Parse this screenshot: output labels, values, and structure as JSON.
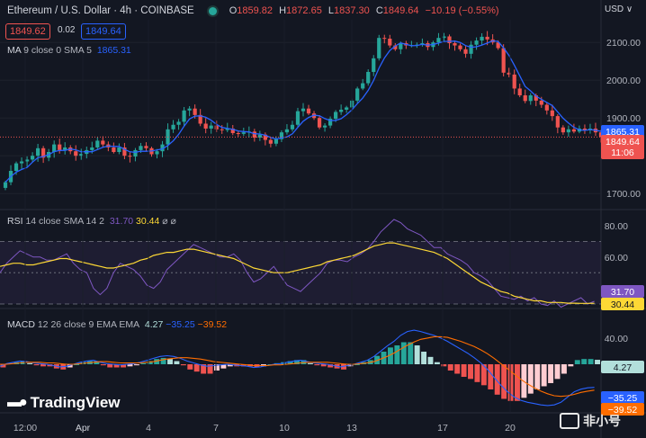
{
  "header": {
    "symbol": "Ethereum / U.S. Dollar · 4h · COINBASE",
    "o_label": "O",
    "o": "1859.82",
    "h_label": "H",
    "h": "1872.65",
    "l_label": "L",
    "l": "1837.30",
    "c_label": "C",
    "c": "1849.64",
    "change": "−10.19 (−0.55%)",
    "currency": "USD"
  },
  "quote": {
    "bid": "1849.62",
    "spread": "0.02",
    "ask": "1849.64"
  },
  "ma_legend": {
    "name": "MA",
    "params": "9 close 0 SMA 5",
    "value": "1865.31"
  },
  "rsi_legend": {
    "name": "RSI",
    "params": "14 close SMA 14 2",
    "v1": "31.70",
    "v2": "30.44",
    "icons": "⌀ ⌀"
  },
  "macd_legend": {
    "name": "MACD",
    "params": "12 26 close 9 EMA EMA",
    "v1": "4.27",
    "v2": "−35.25",
    "v3": "−39.52"
  },
  "branding": {
    "name": "TradingView",
    "watermark": "非小号"
  },
  "colors": {
    "up": "#26a69a",
    "down": "#ef5350",
    "ma": "#2962ff",
    "rsi": "#7e57c2",
    "rsi_sma": "#fdd835",
    "macd": "#2962ff",
    "signal": "#ff6d00",
    "hist_up": "#26a69a",
    "hist_up_weak": "#b2dfdb",
    "hist_down": "#ef5350",
    "hist_down_weak": "#ffcdd2"
  },
  "chart_data": [
    {
      "type": "candlestick",
      "title": "Ethereum / U.S. Dollar 4h COINBASE",
      "ylim": [
        1660,
        2160
      ],
      "yticks": [
        1700,
        1800,
        1900,
        2000,
        2100
      ],
      "xticks": [
        "12:00",
        "Apr",
        "4",
        "7",
        "10",
        "13",
        "17",
        "20"
      ],
      "closes": [
        1730,
        1760,
        1780,
        1785,
        1790,
        1800,
        1820,
        1795,
        1810,
        1830,
        1815,
        1822,
        1812,
        1800,
        1805,
        1815,
        1822,
        1840,
        1830,
        1822,
        1810,
        1822,
        1800,
        1798,
        1815,
        1826,
        1820,
        1804,
        1812,
        1830,
        1870,
        1882,
        1890,
        1920,
        1925,
        1908,
        1885,
        1872,
        1880,
        1870,
        1868,
        1872,
        1860,
        1858,
        1862,
        1864,
        1848,
        1856,
        1842,
        1832,
        1844,
        1862,
        1870,
        1882,
        1918,
        1925,
        1912,
        1900,
        1875,
        1880,
        1898,
        1916,
        1922,
        1928,
        1946,
        1978,
        1992,
        2022,
        2058,
        2112,
        2110,
        2092,
        2082,
        2098,
        2092,
        2093,
        2094,
        2098,
        2088,
        2100,
        2112,
        2116,
        2098,
        2092,
        2082,
        2070,
        2094,
        2105,
        2115,
        2108,
        2100,
        2085,
        2020,
        2015,
        1978,
        1960,
        1945,
        1960,
        1946,
        1935,
        1920,
        1905,
        1875,
        1862,
        1870,
        1864,
        1872,
        1868,
        1872,
        1862,
        1850
      ],
      "ma": {
        "label": "MA 9 close 0 SMA 5",
        "last": 1865.31
      },
      "last_price": 1849.64,
      "last_ma_label": "1865.31",
      "last_price_label": "1849.64",
      "countdown": "11:06"
    },
    {
      "type": "line",
      "title": "RSI 14 close SMA 14 2",
      "ylim": [
        30,
        84
      ],
      "yticks": [
        40,
        60,
        80
      ],
      "bands": [
        30,
        50,
        70
      ],
      "rsi": [
        50,
        56,
        60,
        64,
        62,
        60,
        60,
        58,
        58,
        60,
        62,
        56,
        52,
        50,
        40,
        36,
        40,
        50,
        56,
        54,
        52,
        48,
        42,
        40,
        44,
        52,
        56,
        60,
        64,
        68,
        66,
        64,
        62,
        60,
        60,
        62,
        58,
        50,
        44,
        46,
        50,
        54,
        48,
        42,
        40,
        38,
        42,
        46,
        50,
        56,
        58,
        58,
        57,
        60,
        62,
        65,
        70,
        76,
        80,
        84,
        82,
        78,
        76,
        74,
        70,
        66,
        66,
        62,
        60,
        58,
        55,
        50,
        48,
        45,
        40,
        35,
        34,
        33,
        35,
        32,
        34,
        30,
        29,
        32,
        28,
        30,
        32,
        34,
        30,
        31.7
      ],
      "sma": [
        54,
        55,
        56,
        56,
        55,
        55,
        56,
        57,
        58,
        59,
        59,
        58,
        57,
        56,
        55,
        54,
        53,
        53,
        54,
        55,
        56,
        58,
        59,
        61,
        62,
        63,
        63,
        64,
        65,
        65,
        64,
        63,
        62,
        61,
        60,
        59,
        57,
        55,
        53,
        52,
        51,
        50,
        50,
        50,
        51,
        52,
        53,
        54,
        55,
        57,
        58,
        59,
        60,
        61,
        63,
        65,
        67,
        68,
        69,
        69,
        68,
        67,
        66,
        65,
        64,
        63,
        61,
        59,
        56,
        53,
        50,
        47,
        44,
        42,
        40,
        38,
        37,
        35,
        34,
        33,
        32,
        32,
        31,
        31,
        31,
        30.5,
        30.5,
        30.4,
        30.4,
        30.44
      ],
      "last_rsi_label": "31.70",
      "last_sma_label": "30.44"
    },
    {
      "type": "line",
      "title": "MACD 12 26 close 9 EMA EMA",
      "ylim": [
        -70,
        70
      ],
      "yticks": [
        40
      ],
      "macd": [
        -3,
        1,
        3,
        5,
        4,
        2,
        1,
        0,
        -2,
        -4,
        -3,
        0,
        3,
        5,
        6,
        3,
        1,
        0,
        -1,
        0,
        1,
        3,
        6,
        9,
        12,
        13,
        12,
        9,
        5,
        2,
        -1,
        -3,
        -2,
        -1,
        0,
        -1,
        -2,
        -3,
        -5,
        -4,
        -2,
        0,
        1,
        3,
        5,
        6,
        4,
        2,
        1,
        0,
        -2,
        -4,
        -2,
        0,
        3,
        6,
        12,
        20,
        28,
        35,
        44,
        50,
        52,
        50,
        47,
        44,
        40,
        35,
        29,
        23,
        17,
        10,
        2,
        -8,
        -20,
        -32,
        -42,
        -50,
        -55,
        -58,
        -60,
        -62,
        -63,
        -62,
        -58,
        -50,
        -42,
        -38,
        -36,
        -35.25
      ],
      "signal": [
        0,
        0,
        1,
        2,
        3,
        3,
        3,
        2,
        2,
        1,
        0,
        0,
        1,
        2,
        3,
        4,
        4,
        3,
        2,
        2,
        2,
        2,
        3,
        4,
        6,
        8,
        9,
        10,
        10,
        9,
        8,
        6,
        4,
        3,
        2,
        1,
        0,
        -1,
        -2,
        -2,
        -2,
        -1,
        -1,
        0,
        1,
        2,
        3,
        3,
        3,
        3,
        2,
        1,
        0,
        0,
        1,
        2,
        4,
        8,
        12,
        17,
        23,
        29,
        34,
        38,
        40,
        42,
        42,
        41,
        38,
        35,
        31,
        27,
        22,
        16,
        9,
        1,
        -7,
        -15,
        -23,
        -30,
        -36,
        -41,
        -45,
        -48,
        -49,
        -48,
        -46,
        -43,
        -41,
        -39.52
      ],
      "last_macd_label": "4.27",
      "last_macd_value_label": "−35.25",
      "last_signal_label": "−39.52"
    }
  ]
}
